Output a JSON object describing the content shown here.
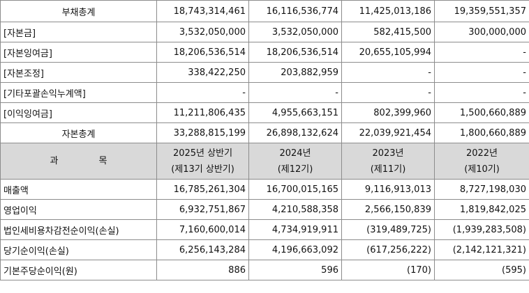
{
  "balance_rows": [
    {
      "label": "부채총계",
      "centered": true,
      "values": [
        "18,743,314,461",
        "16,116,536,774",
        "11,425,013,186",
        "19,359,551,357"
      ]
    },
    {
      "label": "[자본금]",
      "centered": false,
      "values": [
        "3,532,050,000",
        "3,532,050,000",
        "582,415,500",
        "300,000,000"
      ]
    },
    {
      "label": "[자본잉여금]",
      "centered": false,
      "values": [
        "18,206,536,514",
        "18,206,536,514",
        "20,655,105,994",
        "-"
      ]
    },
    {
      "label": "[자본조정]",
      "centered": false,
      "values": [
        "338,422,250",
        "203,882,959",
        "-",
        "-"
      ]
    },
    {
      "label": "[기타포괄손익누계액]",
      "centered": false,
      "values": [
        "-",
        "-",
        "-",
        "-"
      ]
    },
    {
      "label": "[이익잉여금]",
      "centered": false,
      "values": [
        "11,211,806,435",
        "4,955,663,151",
        "802,399,960",
        "1,500,660,889"
      ]
    },
    {
      "label": "자본총계",
      "centered": true,
      "values": [
        "33,288,815,199",
        "26,898,132,624",
        "22,039,921,454",
        "1,800,660,889"
      ]
    }
  ],
  "header": {
    "subject_left": "과",
    "subject_right": "목",
    "periods": [
      {
        "year": "2025년 상반기",
        "term": "(제13기 상반기)"
      },
      {
        "year": "2024년",
        "term": "(제12기)"
      },
      {
        "year": "2023년",
        "term": "(제11기)"
      },
      {
        "year": "2022년",
        "term": "(제10기)"
      }
    ]
  },
  "income_rows": [
    {
      "label": "매출액",
      "values": [
        "16,785,261,304",
        "16,700,015,165",
        "9,116,913,013",
        "8,727,198,030"
      ]
    },
    {
      "label": "영업이익",
      "values": [
        "6,932,751,867",
        "4,210,588,358",
        "2,566,150,839",
        "1,819,842,025"
      ]
    },
    {
      "label": "법인세비용차감전순이익(손실)",
      "values": [
        "7,160,600,014",
        "4,734,919,911",
        "(319,489,725)",
        "(1,939,283,508)"
      ]
    },
    {
      "label": "당기순이익(손실)",
      "values": [
        "6,256,143,284",
        "4,196,663,092",
        "(617,256,222)",
        "(2,142,121,321)"
      ]
    },
    {
      "label": "기본주당순이익(원)",
      "values": [
        "886",
        "596",
        "(170)",
        "(595)"
      ]
    }
  ]
}
